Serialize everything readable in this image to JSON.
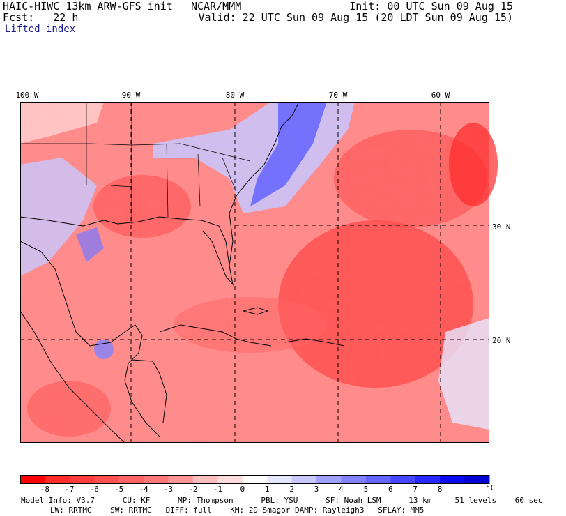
{
  "header": {
    "model": "HAIC-HIWC 13km ARW-GFS init",
    "org": "NCAR/MMM",
    "fcst": "Fcst:   22 h",
    "init": "Init: 00 UTC Sun 09 Aug 15",
    "valid": "Valid: 22 UTC Sun 09 Aug 15 (20 LDT Sun 09 Aug 15)",
    "field": "Lifted index"
  },
  "map": {
    "lon_labels": [
      "100 W",
      "90 W",
      "80 W",
      "70 W",
      "60 W"
    ],
    "lat_labels": [
      "30 N",
      "20 N"
    ]
  },
  "colorbar": {
    "ticks": [
      "-8",
      "-7",
      "-6",
      "-5",
      "-4",
      "-3",
      "-2",
      "-1",
      "0",
      "1",
      "2",
      "3",
      "4",
      "5",
      "6",
      "7",
      "8"
    ],
    "unit": "°C",
    "colors": [
      "#ff0000",
      "#ff2a2a",
      "#ff3c3c",
      "#ff5050",
      "#ff6464",
      "#ff7878",
      "#ff9696",
      "#ffbebe",
      "#ffdcdc",
      "#ffffff",
      "#e6e6ff",
      "#c8c8ff",
      "#a0a0ff",
      "#8282ff",
      "#6464ff",
      "#4646ff",
      "#2828ff",
      "#0a0af0",
      "#0000d2"
    ]
  },
  "footer": {
    "line1": "Model Info: V3.7      CU: KF      MP: Thompson      PBL: YSU      SF: Noah LSM      13 km     51 levels    60 sec",
    "line2": "LW: RRTMG    SW: RRTMG   DIFF: full    KM: 2D Smagor DAMP: Rayleigh3   SFLAY: MM5"
  }
}
